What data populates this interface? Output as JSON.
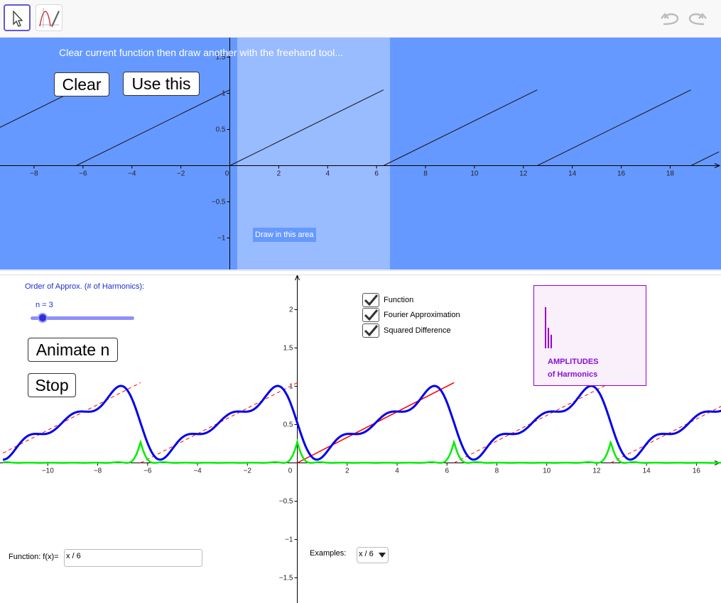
{
  "toolbar": {
    "tools": [
      {
        "icon": "move-arrow-icon",
        "selected": true
      },
      {
        "icon": "freehand-function-icon",
        "selected": false
      }
    ],
    "undo_icon": "undo-icon",
    "redo_icon": "redo-icon"
  },
  "top_panel": {
    "instruction": "Clear current function then draw another with the freehand tool...",
    "clear_label": "Clear",
    "use_label": "Use this",
    "draw_area_label": "Draw in this area",
    "background": "#6699ff",
    "draw_area_color": "#99bbff",
    "x_ticks": [
      "−8",
      "−6",
      "−4",
      "−2",
      "0",
      "2",
      "4",
      "6",
      "8",
      "10",
      "12",
      "14",
      "16",
      "18"
    ],
    "y_ticks": [
      "1.5",
      "1",
      "0.5",
      "−0.5",
      "−1"
    ]
  },
  "controls": {
    "order_label": "Order of Approx. (# of Harmonics):",
    "n_label": "n = 3",
    "n_value": 3,
    "animate_label": "Animate n",
    "stop_label": "Stop",
    "function_label": "Function: f(x)=",
    "function_value": "x / 6",
    "examples_label": "Examples:",
    "examples_selected": "x / 6"
  },
  "checkboxes": [
    {
      "label": "Function",
      "checked": true
    },
    {
      "label": "Fourier Approximation",
      "checked": true
    },
    {
      "label": "Squared Difference",
      "checked": true
    }
  ],
  "amplitudes": {
    "title_line1": "AMPLITUDES",
    "title_line2": "of Harmonics",
    "color": "#9900cc",
    "values": [
      1.0,
      0.5,
      0.33
    ]
  },
  "chart_data": {
    "type": "line",
    "x_ticks": [
      "−10",
      "−8",
      "−6",
      "−4",
      "−2",
      "0",
      "2",
      "4",
      "6",
      "8",
      "10",
      "12",
      "14",
      "16"
    ],
    "y_ticks": [
      "2",
      "1.5",
      "1",
      "0.5",
      "−0.5",
      "−1",
      "−1.5"
    ],
    "xlim": [
      -11.8,
      17.2
    ],
    "ylim": [
      -1.75,
      2.38
    ],
    "function": "x / 6",
    "period": 6.2832,
    "harmonics": 3,
    "series": [
      {
        "color": "#ff0000",
        "style": "dashed-periodic"
      },
      {
        "color": "#0000ee",
        "style": "solid"
      },
      {
        "color": "#00ee00",
        "style": "solid"
      }
    ]
  }
}
